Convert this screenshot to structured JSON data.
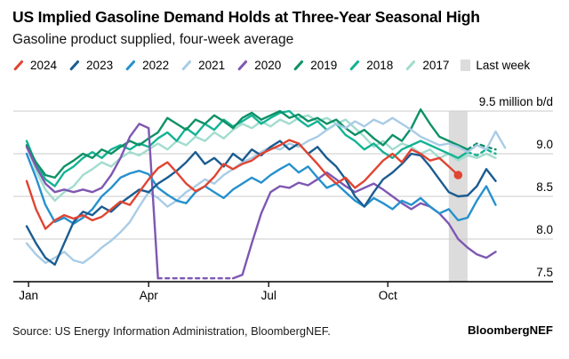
{
  "header": {
    "title": "US Implied Gasoline Demand Holds at Three-Year Seasonal High",
    "subtitle": "Gasoline product supplied, four-week average"
  },
  "legend": {
    "items": [
      {
        "label": "2024",
        "color": "#e04532",
        "marker": "slash"
      },
      {
        "label": "2023",
        "color": "#1b5c90",
        "marker": "slash"
      },
      {
        "label": "2022",
        "color": "#2691cd",
        "marker": "slash"
      },
      {
        "label": "2021",
        "color": "#a9cce6",
        "marker": "slash"
      },
      {
        "label": "2020",
        "color": "#7e57b2",
        "marker": "slash"
      },
      {
        "label": "2019",
        "color": "#0e9167",
        "marker": "slash"
      },
      {
        "label": "2018",
        "color": "#14b394",
        "marker": "slash"
      },
      {
        "label": "2017",
        "color": "#a3dccf",
        "marker": "slash"
      },
      {
        "label": "Last week",
        "color": "#dcdcdc",
        "marker": "square"
      }
    ]
  },
  "source": {
    "text": "Source: US Energy Information Administration, BloombergNEF.",
    "brand": "BloombergNEF"
  },
  "chart_data": {
    "type": "line",
    "title": "US Implied Gasoline Demand Holds at Three-Year Seasonal High",
    "subtitle": "Gasoline product supplied, four-week average",
    "y_unit": "million b/d",
    "ylim": [
      7.5,
      9.5
    ],
    "x_unit": "weeks of year",
    "x_range_weeks": 52,
    "grid": true,
    "legend_position": "top",
    "y_ticks": [
      {
        "value": 9.5,
        "label": "9.5 million b/d"
      },
      {
        "value": 9.0,
        "label": "9.0"
      },
      {
        "value": 8.5,
        "label": "8.5"
      },
      {
        "value": 8.0,
        "label": "8.0"
      },
      {
        "value": 7.5,
        "label": "7.5",
        "axis": true
      }
    ],
    "x_ticks": [
      {
        "label": "Jan",
        "week": 0.2
      },
      {
        "label": "Apr",
        "week": 13.0
      },
      {
        "label": "Jul",
        "week": 25.8
      },
      {
        "label": "Oct",
        "week": 38.5
      }
    ],
    "last_week_band": {
      "label": "Last week",
      "from_week": 45,
      "to_week": 47,
      "color": "#dcdcdc"
    },
    "note": "2020 series clipped below axis during Apr-Jun collapse, shown dashed along bottom; values in million barrels/day by week",
    "series": [
      {
        "name": "2017",
        "color": "#a3dccf",
        "values": [
          9.1,
          8.8,
          8.58,
          8.45,
          8.55,
          8.62,
          8.75,
          8.82,
          8.9,
          8.85,
          8.95,
          9.02,
          8.98,
          9.05,
          9.12,
          9.05,
          9.15,
          9.1,
          9.2,
          9.15,
          9.25,
          9.18,
          9.28,
          9.35,
          9.3,
          9.38,
          9.32,
          9.4,
          9.35,
          9.42,
          9.45,
          9.38,
          9.42,
          9.35,
          9.4,
          9.3,
          9.2,
          9.08,
          9.15,
          9.05,
          9.12,
          9.08,
          9.0,
          9.05,
          8.95,
          9.0,
          8.92,
          8.98,
          8.95,
          9.0,
          8.95
        ]
      },
      {
        "name": "2018",
        "color": "#14b394",
        "dashed_range": [
          47,
          50
        ],
        "values": [
          9.15,
          8.88,
          8.7,
          8.62,
          8.78,
          8.85,
          8.95,
          9.02,
          8.95,
          9.05,
          9.1,
          9.05,
          9.12,
          9.08,
          9.18,
          9.25,
          9.15,
          9.3,
          9.22,
          9.35,
          9.28,
          9.4,
          9.32,
          9.38,
          9.45,
          9.35,
          9.42,
          9.48,
          9.5,
          9.4,
          9.32,
          9.38,
          9.28,
          9.35,
          9.22,
          9.15,
          9.05,
          9.12,
          9.02,
          8.95,
          9.05,
          9.1,
          9.15,
          9.1,
          9.05,
          9.0,
          8.95,
          9.02,
          8.98,
          9.05,
          9.0
        ]
      },
      {
        "name": "2019",
        "color": "#0e9167",
        "dashed_range": [
          47,
          50
        ],
        "values": [
          9.1,
          8.9,
          8.75,
          8.72,
          8.85,
          8.92,
          9.0,
          8.95,
          9.05,
          9.0,
          9.08,
          9.15,
          9.1,
          9.18,
          9.25,
          9.42,
          9.35,
          9.28,
          9.4,
          9.35,
          9.45,
          9.38,
          9.3,
          9.42,
          9.48,
          9.4,
          9.45,
          9.5,
          9.42,
          9.46,
          9.38,
          9.42,
          9.35,
          9.4,
          9.3,
          9.22,
          9.28,
          9.18,
          9.1,
          9.22,
          9.15,
          9.3,
          9.52,
          9.35,
          9.2,
          9.15,
          9.1,
          9.05,
          9.12,
          9.08,
          9.05
        ]
      },
      {
        "name": "2021",
        "color": "#a9cce6",
        "values": [
          7.95,
          7.82,
          7.72,
          7.78,
          7.85,
          7.75,
          7.72,
          7.8,
          7.9,
          7.98,
          8.08,
          8.2,
          8.38,
          8.55,
          8.48,
          8.38,
          8.45,
          8.55,
          8.62,
          8.7,
          8.65,
          8.75,
          8.82,
          8.9,
          8.95,
          9.02,
          9.08,
          9.05,
          9.12,
          9.08,
          9.15,
          9.2,
          9.28,
          9.35,
          9.3,
          9.38,
          9.32,
          9.4,
          9.35,
          9.42,
          9.35,
          9.28,
          9.2,
          9.15,
          9.1,
          9.12,
          9.08,
          9.02,
          9.1,
          9.05,
          9.26,
          9.07
        ]
      },
      {
        "name": "2020",
        "color": "#7e57b2",
        "dashed_range": [
          14,
          22
        ],
        "values": [
          9.08,
          8.85,
          8.65,
          8.55,
          8.58,
          8.55,
          8.58,
          8.55,
          8.6,
          8.75,
          8.95,
          9.2,
          9.35,
          9.3,
          7.54,
          7.54,
          7.54,
          7.54,
          7.54,
          7.54,
          7.54,
          7.54,
          7.54,
          7.58,
          7.95,
          8.3,
          8.55,
          8.62,
          8.6,
          8.66,
          8.63,
          8.7,
          8.78,
          8.7,
          8.62,
          8.55,
          8.6,
          8.65,
          8.58,
          8.5,
          8.42,
          8.35,
          8.42,
          8.38,
          8.3,
          8.18,
          8.0,
          7.9,
          7.82,
          7.78,
          7.85
        ]
      },
      {
        "name": "2022",
        "color": "#2691cd",
        "values": [
          9.0,
          8.72,
          8.4,
          8.2,
          8.25,
          8.18,
          8.25,
          8.35,
          8.5,
          8.6,
          8.72,
          8.77,
          8.8,
          8.76,
          8.6,
          8.52,
          8.45,
          8.42,
          8.55,
          8.62,
          8.55,
          8.48,
          8.58,
          8.65,
          8.72,
          8.66,
          8.75,
          8.82,
          8.88,
          8.78,
          8.85,
          8.72,
          8.6,
          8.65,
          8.55,
          8.45,
          8.38,
          8.48,
          8.42,
          8.35,
          8.45,
          8.4,
          8.48,
          8.38,
          8.3,
          8.35,
          8.22,
          8.25,
          8.45,
          8.62,
          8.4
        ]
      },
      {
        "name": "2023",
        "color": "#1b5c90",
        "values": [
          8.15,
          7.95,
          7.78,
          7.7,
          7.95,
          8.2,
          8.32,
          8.28,
          8.38,
          8.32,
          8.42,
          8.5,
          8.58,
          8.55,
          8.65,
          8.72,
          8.8,
          8.9,
          9.02,
          8.88,
          8.95,
          8.85,
          9.0,
          8.92,
          9.05,
          8.98,
          9.08,
          9.15,
          9.05,
          9.12,
          9.0,
          9.08,
          8.95,
          8.85,
          8.7,
          8.5,
          8.38,
          8.55,
          8.7,
          8.78,
          8.88,
          9.0,
          8.98,
          8.85,
          8.7,
          8.55,
          8.5,
          8.51,
          8.62,
          8.82,
          8.68
        ]
      },
      {
        "name": "2024",
        "color": "#e04532",
        "end_dot": true,
        "values": [
          8.68,
          8.35,
          8.12,
          8.22,
          8.28,
          8.24,
          8.28,
          8.22,
          8.26,
          8.35,
          8.44,
          8.4,
          8.55,
          8.7,
          8.83,
          8.9,
          8.78,
          8.65,
          8.56,
          8.62,
          8.73,
          8.88,
          8.82,
          8.88,
          8.92,
          9.0,
          9.05,
          9.1,
          9.16,
          9.12,
          9.0,
          8.88,
          8.75,
          8.65,
          8.72,
          8.6,
          8.68,
          8.8,
          8.92,
          9.0,
          8.9,
          9.05,
          9.0,
          8.92,
          8.95,
          8.85,
          8.75
        ]
      }
    ]
  }
}
